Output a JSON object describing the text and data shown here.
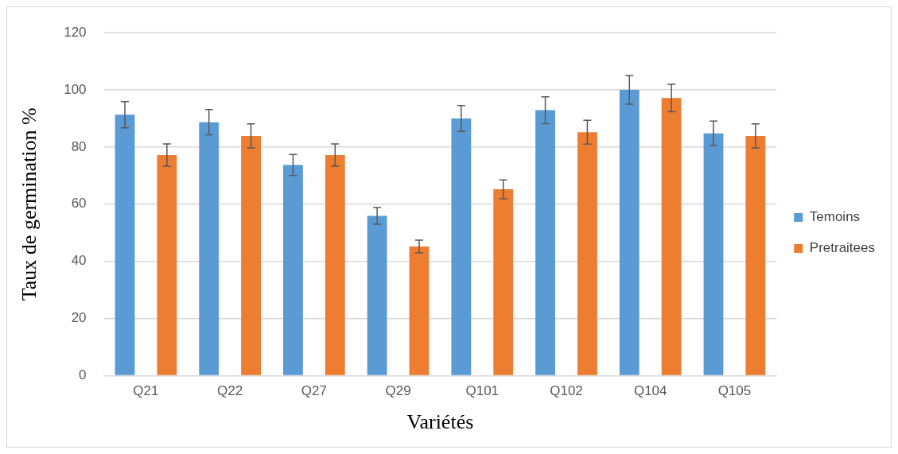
{
  "chart_data": {
    "type": "bar",
    "xlabel": "Variétés",
    "ylabel": "Taux de germination %",
    "categories": [
      "Q21",
      "Q22",
      "Q27",
      "Q29",
      "Q101",
      "Q102",
      "Q104",
      "Q105"
    ],
    "series": [
      {
        "name": "Temoins",
        "color": "#5b9bd5",
        "values": [
          91.3,
          88.7,
          73.7,
          55.9,
          90.0,
          92.9,
          100,
          84.8
        ],
        "errors": [
          4.6,
          4.4,
          3.7,
          2.9,
          4.5,
          4.7,
          5,
          4.3
        ]
      },
      {
        "name": "Pretraitees",
        "color": "#ed7d31",
        "values": [
          77.2,
          83.9,
          77.2,
          45.2,
          65.2,
          85.2,
          97.2,
          83.9
        ],
        "errors": [
          3.9,
          4.2,
          3.9,
          2.2,
          3.3,
          4.2,
          4.8,
          4.2
        ]
      }
    ],
    "ylim": [
      0,
      120
    ],
    "yticks": [
      0,
      20,
      40,
      60,
      80,
      100,
      120
    ],
    "grid": "y",
    "legend": "right"
  }
}
